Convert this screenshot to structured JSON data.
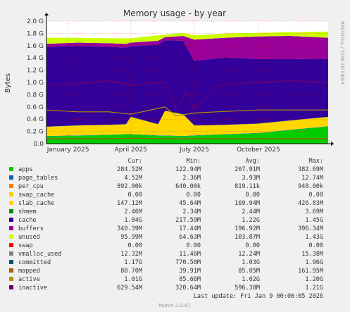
{
  "chart_data": {
    "type": "area",
    "title": "Memory usage - by year",
    "ylabel": "Bytes",
    "side_label": "RRDTOOL / TOBI OETIKER",
    "ylim": [
      0,
      2.0
    ],
    "y_ticks": [
      {
        "v": 0.0,
        "label": "0.0"
      },
      {
        "v": 0.2,
        "label": "0.2 G"
      },
      {
        "v": 0.4,
        "label": "0.4 G"
      },
      {
        "v": 0.6,
        "label": "0.6 G"
      },
      {
        "v": 0.8,
        "label": "0.8 G"
      },
      {
        "v": 1.0,
        "label": "1.0 G"
      },
      {
        "v": 1.2,
        "label": "1.2 G"
      },
      {
        "v": 1.4,
        "label": "1.4 G"
      },
      {
        "v": 1.6,
        "label": "1.6 G"
      },
      {
        "v": 1.8,
        "label": "1.8 G"
      },
      {
        "v": 2.0,
        "label": "2.0 G"
      }
    ],
    "x_domain": [
      "2024-12-01",
      "2026-01-09"
    ],
    "x_ticks": [
      {
        "date": "2025-01-01",
        "label": "January 2025"
      },
      {
        "date": "2025-04-01",
        "label": "April 2025"
      },
      {
        "date": "2025-07-01",
        "label": "July 2025"
      },
      {
        "date": "2025-10-01",
        "label": "October 2025"
      }
    ],
    "stack_points": [
      {
        "d": "2024-12-01",
        "apps": 0.12,
        "page_tables": 0.005,
        "per_cpu": 0.001,
        "slab_cache": 0.15,
        "shmem": 0.003,
        "cache": 1.3,
        "buffers": 0.05,
        "unused": 0.1
      },
      {
        "d": "2025-01-15",
        "apps": 0.13,
        "page_tables": 0.005,
        "per_cpu": 0.001,
        "slab_cache": 0.16,
        "shmem": 0.003,
        "cache": 1.3,
        "buffers": 0.05,
        "unused": 0.08
      },
      {
        "d": "2025-03-01",
        "apps": 0.14,
        "page_tables": 0.005,
        "per_cpu": 0.001,
        "slab_cache": 0.16,
        "shmem": 0.003,
        "cache": 1.27,
        "buffers": 0.06,
        "unused": 0.08
      },
      {
        "d": "2025-03-25",
        "apps": 0.15,
        "page_tables": 0.005,
        "per_cpu": 0.001,
        "slab_cache": 0.16,
        "shmem": 0.003,
        "cache": 1.25,
        "buffers": 0.06,
        "unused": 0.09
      },
      {
        "d": "2025-04-01",
        "apps": 0.15,
        "page_tables": 0.005,
        "per_cpu": 0.001,
        "slab_cache": 0.28,
        "shmem": 0.003,
        "cache": 1.15,
        "buffers": 0.06,
        "unused": 0.07
      },
      {
        "d": "2025-05-10",
        "apps": 0.13,
        "page_tables": 0.005,
        "per_cpu": 0.001,
        "slab_cache": 0.18,
        "shmem": 0.003,
        "cache": 1.3,
        "buffers": 0.06,
        "unused": 0.09
      },
      {
        "d": "2025-05-20",
        "apps": 0.13,
        "page_tables": 0.005,
        "per_cpu": 0.001,
        "slab_cache": 0.4,
        "shmem": 0.003,
        "cache": 1.15,
        "buffers": 0.05,
        "unused": 0.04
      },
      {
        "d": "2025-06-15",
        "apps": 0.12,
        "page_tables": 0.005,
        "per_cpu": 0.001,
        "slab_cache": 0.35,
        "shmem": 0.003,
        "cache": 1.2,
        "buffers": 0.08,
        "unused": 0.05
      },
      {
        "d": "2025-07-01",
        "apps": 0.13,
        "page_tables": 0.005,
        "per_cpu": 0.001,
        "slab_cache": 0.16,
        "shmem": 0.003,
        "cache": 1.05,
        "buffers": 0.35,
        "unused": 0.07
      },
      {
        "d": "2025-08-15",
        "apps": 0.15,
        "page_tables": 0.005,
        "per_cpu": 0.001,
        "slab_cache": 0.15,
        "shmem": 0.003,
        "cache": 1.1,
        "buffers": 0.32,
        "unused": 0.07
      },
      {
        "d": "2025-10-01",
        "apps": 0.17,
        "page_tables": 0.005,
        "per_cpu": 0.001,
        "slab_cache": 0.15,
        "shmem": 0.003,
        "cache": 1.05,
        "buffers": 0.37,
        "unused": 0.06
      },
      {
        "d": "2025-11-15",
        "apps": 0.22,
        "page_tables": 0.005,
        "per_cpu": 0.001,
        "slab_cache": 0.15,
        "shmem": 0.003,
        "cache": 1.0,
        "buffers": 0.38,
        "unused": 0.06
      },
      {
        "d": "2026-01-09",
        "apps": 0.28,
        "page_tables": 0.005,
        "per_cpu": 0.001,
        "slab_cache": 0.15,
        "shmem": 0.003,
        "cache": 0.95,
        "buffers": 0.34,
        "unused": 0.1
      }
    ],
    "line_points": [
      {
        "d": "2024-12-01",
        "inactive": 0.95,
        "active": 0.55,
        "mapped": 0.08
      },
      {
        "d": "2025-01-15",
        "inactive": 0.98,
        "active": 0.52,
        "mapped": 0.08
      },
      {
        "d": "2025-03-01",
        "inactive": 1.03,
        "active": 0.52,
        "mapped": 0.08
      },
      {
        "d": "2025-04-01",
        "inactive": 0.95,
        "active": 0.48,
        "mapped": 0.09
      },
      {
        "d": "2025-05-20",
        "inactive": 1.0,
        "active": 0.6,
        "mapped": 0.08
      },
      {
        "d": "2025-06-05",
        "inactive": 0.55,
        "active": 0.45,
        "mapped": 0.08
      },
      {
        "d": "2025-06-20",
        "inactive": 0.85,
        "active": 0.48,
        "mapped": 0.08
      },
      {
        "d": "2025-07-01",
        "inactive": 0.55,
        "active": 0.5,
        "mapped": 0.08
      },
      {
        "d": "2025-08-01",
        "inactive": 0.95,
        "active": 0.52,
        "mapped": 0.08
      },
      {
        "d": "2025-10-01",
        "inactive": 1.0,
        "active": 0.55,
        "mapped": 0.08
      },
      {
        "d": "2025-11-15",
        "inactive": 1.03,
        "active": 0.55,
        "mapped": 0.08
      },
      {
        "d": "2026-01-09",
        "inactive": 1.0,
        "active": 0.55,
        "mapped": 0.08
      }
    ],
    "legend_headers": {
      "cur": "Cur:",
      "min": "Min:",
      "avg": "Avg:",
      "max": "Max:"
    },
    "legend": [
      {
        "name": "apps",
        "color": "#00cc00",
        "cur": "284.52M",
        "min": "122.94M",
        "avg": "207.91M",
        "max": "382.69M"
      },
      {
        "name": "page_tables",
        "color": "#0066b3",
        "cur": "4.52M",
        "min": "2.36M",
        "avg": "3.93M",
        "max": "12.74M"
      },
      {
        "name": "per_cpu",
        "color": "#ff8000",
        "cur": "892.00k",
        "min": "640.00k",
        "avg": "819.11k",
        "max": "948.00k"
      },
      {
        "name": "swap_cache",
        "color": "#ffcc00",
        "cur": "0.00",
        "min": "0.00",
        "avg": "0.00",
        "max": "0.00"
      },
      {
        "name": "slab_cache",
        "color": "#ffd700",
        "cur": "147.12M",
        "min": "45.64M",
        "avg": "169.94M",
        "max": "426.83M"
      },
      {
        "name": "shmem",
        "color": "#008f00",
        "cur": "2.46M",
        "min": "2.34M",
        "avg": "2.44M",
        "max": "3.69M"
      },
      {
        "name": "cache",
        "color": "#330099",
        "cur": "1.04G",
        "min": "217.59M",
        "avg": "1.22G",
        "max": "1.45G"
      },
      {
        "name": "buffers",
        "color": "#990099",
        "cur": "340.39M",
        "min": "17.44M",
        "avg": "196.92M",
        "max": "396.34M"
      },
      {
        "name": "unused",
        "color": "#ccff00",
        "cur": "95.99M",
        "min": "64.63M",
        "avg": "103.87M",
        "max": "1.43G"
      },
      {
        "name": "swap",
        "color": "#ff0000",
        "cur": "0.00",
        "min": "0.00",
        "avg": "0.00",
        "max": "0.00"
      },
      {
        "name": "vmalloc_used",
        "color": "#808080",
        "cur": "12.32M",
        "min": "11.46M",
        "avg": "12.24M",
        "max": "15.38M"
      },
      {
        "name": "committed",
        "color": "#00527a",
        "cur": "1.17G",
        "min": "770.50M",
        "avg": "1.03G",
        "max": "1.96G"
      },
      {
        "name": "mapped",
        "color": "#b35a00",
        "cur": "80.70M",
        "min": "39.91M",
        "avg": "85.05M",
        "max": "161.95M"
      },
      {
        "name": "active",
        "color": "#b38f00",
        "cur": "1.01G",
        "min": "85.66M",
        "avg": "1.02G",
        "max": "1.20G"
      },
      {
        "name": "inactive",
        "color": "#6b006b",
        "cur": "629.54M",
        "min": "320.64M",
        "avg": "596.38M",
        "max": "1.21G"
      }
    ],
    "footer": "Last update: Fri Jan  9 00:00:05 2026",
    "munin": "Munin 2.0.67",
    "colors": {
      "background": "#f0f0f0",
      "plot_bg": "#ffffff",
      "grid_major": "#ff0000",
      "grid_minor": "#e0e0e0",
      "axis": "#000000"
    }
  }
}
